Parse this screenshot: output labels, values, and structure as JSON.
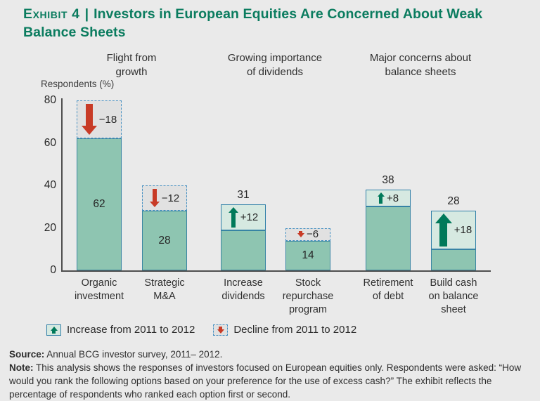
{
  "header": {
    "exhibit": "Exhibit 4",
    "separator": "|",
    "title": "Investors in European Equities Are Concerned About Weak Balance Sheets"
  },
  "colors": {
    "title_green": "#0b7c5f",
    "bar_fill": "#8ec5b1",
    "increase_fill": "#d6e9e1",
    "decline_fill": "#e1e1e1",
    "segment_border": "#2f7fa8",
    "decline_border": "#4590c2",
    "arrow_green": "#00795a",
    "arrow_red": "#c83b26"
  },
  "chart_data": {
    "type": "bar",
    "title": "Investors in European Equities Are Concerned About Weak Balance Sheets",
    "ylabel": "Respondents (%)",
    "xlabel": "",
    "ylim": [
      0,
      80
    ],
    "y_ticks": [
      0,
      20,
      40,
      60,
      80
    ],
    "grid": false,
    "legend_position": "bottom",
    "groups": [
      {
        "label": "Flight from\ngrowth",
        "bar_indices": [
          0,
          1
        ]
      },
      {
        "label": "Growing importance\nof dividends",
        "bar_indices": [
          2,
          3
        ]
      },
      {
        "label": "Major concerns about\nbalance sheets",
        "bar_indices": [
          4,
          5
        ]
      }
    ],
    "bars": [
      {
        "category": "Organic investment",
        "label": "Organic\ninvestment",
        "value": 62,
        "change": -18,
        "value_label": "62",
        "change_label": "−18"
      },
      {
        "category": "Strategic M&A",
        "label": "Strategic\nM&A",
        "value": 28,
        "change": -12,
        "value_label": "28",
        "change_label": "−12"
      },
      {
        "category": "Increase dividends",
        "label": "Increase\ndividends",
        "value": 31,
        "change": 12,
        "value_label": "31",
        "change_label": "+12"
      },
      {
        "category": "Stock repurchase program",
        "label": "Stock\nrepurchase\nprogram",
        "value": 14,
        "change": -6,
        "value_label": "14",
        "change_label": "−6"
      },
      {
        "category": "Retirement of debt",
        "label": "Retirement\nof debt",
        "value": 38,
        "change": 8,
        "value_label": "38",
        "change_label": "+8"
      },
      {
        "category": "Build cash on balance sheet",
        "label": "Build cash\non balance\nsheet",
        "value": 28,
        "change": 18,
        "value_label": "28",
        "change_label": "+18"
      }
    ]
  },
  "legend": {
    "items": [
      {
        "label": "Increase from 2011 to 2012",
        "type": "increase"
      },
      {
        "label": "Decline from 2011 to 2012",
        "type": "decline"
      }
    ]
  },
  "footer": {
    "source_label": "Source:",
    "source_text": " Annual BCG investor survey, 2011– 2012.",
    "note_label": "Note:",
    "note_text": " This analysis shows the responses of investors focused on European equities only. Respondents were asked: “How would you rank the following options based on your preference for the use of excess cash?” The exhibit reflects the percentage of respondents who ranked each option first or second."
  }
}
